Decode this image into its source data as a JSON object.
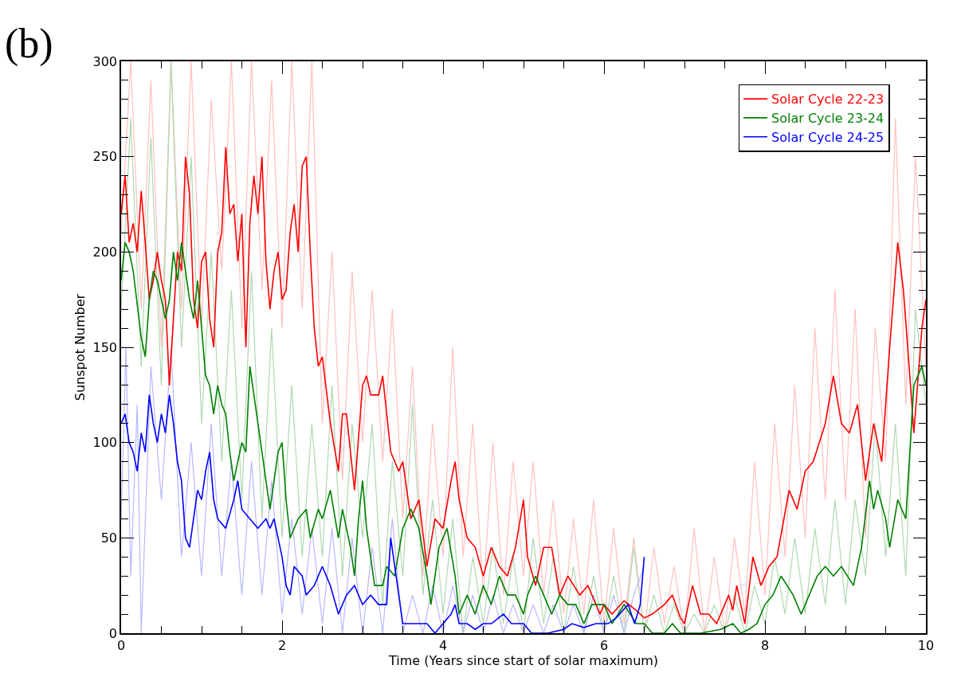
{
  "chart_data": {
    "type": "line",
    "title": "(b)",
    "xlabel": "Time (Years since start of solar maximum)",
    "ylabel": "Sunspot Number",
    "xlim": [
      0,
      10
    ],
    "ylim": [
      0,
      300
    ],
    "xticks": [
      0,
      {
        "value": 0.5,
        "label": null
      },
      {
        "value": 1,
        "label": null
      },
      {
        "value": 1.5,
        "label": null
      },
      2,
      {
        "value": 2.5,
        "label": null
      },
      {
        "value": 3,
        "label": null
      },
      {
        "value": 3.5,
        "label": null
      },
      4,
      {
        "value": 4.5,
        "label": null
      },
      {
        "value": 5,
        "label": null
      },
      {
        "value": 5.5,
        "label": null
      },
      6,
      {
        "value": 6.5,
        "label": null
      },
      {
        "value": 7,
        "label": null
      },
      {
        "value": 7.5,
        "label": null
      },
      8,
      {
        "value": 8.5,
        "label": null
      },
      {
        "value": 9,
        "label": null
      },
      {
        "value": 9.5,
        "label": null
      },
      10
    ],
    "yticks": [
      0,
      {
        "value": 10,
        "label": null
      },
      {
        "value": 20,
        "label": null
      },
      {
        "value": 30,
        "label": null
      },
      {
        "value": 40,
        "label": null
      },
      50,
      {
        "value": 60,
        "label": null
      },
      {
        "value": 70,
        "label": null
      },
      {
        "value": 80,
        "label": null
      },
      {
        "value": 90,
        "label": null
      },
      100,
      {
        "value": 110,
        "label": null
      },
      {
        "value": 120,
        "label": null
      },
      {
        "value": 130,
        "label": null
      },
      {
        "value": 140,
        "label": null
      },
      150,
      {
        "value": 160,
        "label": null
      },
      {
        "value": 170,
        "label": null
      },
      {
        "value": 180,
        "label": null
      },
      {
        "value": 190,
        "label": null
      },
      200,
      {
        "value": 210,
        "label": null
      },
      {
        "value": 220,
        "label": null
      },
      {
        "value": 230,
        "label": null
      },
      {
        "value": 240,
        "label": null
      },
      250,
      {
        "value": 260,
        "label": null
      },
      {
        "value": 270,
        "label": null
      },
      {
        "value": 280,
        "label": null
      },
      {
        "value": 290,
        "label": null
      },
      300
    ],
    "legend": "top right",
    "marker": "none",
    "line_style": "solid",
    "series": [
      {
        "color": "#ffc0c0",
        "x": [
          0,
          0.12,
          0.25,
          0.37,
          0.5,
          0.62,
          0.75,
          0.87,
          1.0,
          1.12,
          1.25,
          1.37,
          1.5,
          1.62,
          1.75,
          1.87,
          2.0,
          2.12,
          2.25,
          2.37,
          2.5,
          2.62,
          2.75,
          2.87,
          3.0,
          3.12,
          3.25,
          3.37,
          3.5,
          3.62,
          3.75,
          3.87,
          4.0,
          4.12,
          4.25,
          4.37,
          4.5,
          4.62,
          4.75,
          4.87,
          5.0,
          5.12,
          5.25,
          5.37,
          5.5,
          5.62,
          5.75,
          5.87,
          6.0,
          6.12,
          6.25,
          6.37,
          6.5,
          6.62,
          6.75,
          6.87,
          7.0,
          7.12,
          7.25,
          7.37,
          7.5,
          7.62,
          7.75,
          7.87,
          8.0,
          8.12,
          8.25,
          8.37,
          8.5,
          8.62,
          8.75,
          8.87,
          9.0,
          9.12,
          9.25,
          9.37,
          9.5,
          9.62,
          9.75,
          9.87,
          10.0
        ],
        "values": [
          210,
          300,
          170,
          290,
          150,
          300,
          170,
          300,
          160,
          280,
          190,
          300,
          160,
          300,
          180,
          290,
          160,
          300,
          170,
          300,
          110,
          200,
          80,
          190,
          100,
          180,
          90,
          170,
          60,
          140,
          30,
          110,
          40,
          150,
          40,
          110,
          20,
          100,
          20,
          90,
          30,
          90,
          20,
          70,
          10,
          60,
          10,
          70,
          5,
          55,
          5,
          50,
          0,
          45,
          5,
          35,
          0,
          55,
          0,
          40,
          0,
          50,
          10,
          90,
          20,
          110,
          40,
          130,
          50,
          160,
          70,
          180,
          70,
          170,
          50,
          160,
          90,
          270,
          120,
          250,
          140
        ]
      },
      {
        "color": "#b0d8b0",
        "x": [
          0,
          0.12,
          0.25,
          0.37,
          0.5,
          0.62,
          0.75,
          0.87,
          1.0,
          1.12,
          1.25,
          1.37,
          1.5,
          1.62,
          1.75,
          1.87,
          2.0,
          2.12,
          2.25,
          2.37,
          2.5,
          2.62,
          2.75,
          2.87,
          3.0,
          3.12,
          3.25,
          3.37,
          3.5,
          3.62,
          3.75,
          3.87,
          4.0,
          4.12,
          4.25,
          4.37,
          4.5,
          4.62,
          4.75,
          4.87,
          5.0,
          5.12,
          5.25,
          5.37,
          5.5,
          5.62,
          5.75,
          5.87,
          6.0,
          6.12,
          6.25,
          6.37,
          6.5,
          6.62,
          6.75,
          6.87,
          7.0,
          7.12,
          7.25,
          7.37,
          7.5,
          7.62,
          7.75,
          7.87,
          8.0,
          8.12,
          8.25,
          8.37,
          8.5,
          8.62,
          8.75,
          8.87,
          9.0,
          9.12,
          9.25,
          9.37,
          9.5,
          9.62,
          9.75,
          9.87,
          10.0
        ],
        "values": [
          170,
          270,
          140,
          260,
          130,
          300,
          150,
          250,
          110,
          200,
          90,
          180,
          70,
          190,
          60,
          160,
          50,
          130,
          40,
          110,
          40,
          130,
          30,
          110,
          50,
          110,
          15,
          90,
          30,
          120,
          20,
          70,
          10,
          60,
          0,
          40,
          5,
          45,
          5,
          40,
          0,
          50,
          5,
          40,
          0,
          35,
          0,
          30,
          0,
          30,
          0,
          45,
          0,
          20,
          0,
          15,
          0,
          10,
          0,
          15,
          0,
          20,
          0,
          25,
          5,
          40,
          10,
          50,
          10,
          55,
          15,
          70,
          15,
          70,
          30,
          110,
          40,
          110,
          30,
          170,
          120
        ]
      },
      {
        "color": "#b8b8ff",
        "x": [
          0,
          0.06,
          0.12,
          0.2,
          0.25,
          0.37,
          0.5,
          0.62,
          0.75,
          0.87,
          1.0,
          1.12,
          1.25,
          1.37,
          1.5,
          1.62,
          1.75,
          1.87,
          2.0,
          2.12,
          2.25,
          2.37,
          2.5,
          2.62,
          2.75,
          2.87,
          3.0,
          3.12,
          3.25,
          3.37,
          3.5,
          3.62,
          3.75,
          3.87,
          4.0,
          4.12,
          4.25,
          4.37,
          4.5,
          4.62,
          4.75,
          4.87,
          5.0,
          5.12,
          5.25,
          5.37,
          5.5,
          5.62,
          5.75,
          5.87,
          6.0,
          6.12,
          6.25,
          6.37,
          6.5
        ],
        "values": [
          60,
          150,
          30,
          120,
          0,
          140,
          70,
          150,
          40,
          100,
          30,
          110,
          30,
          90,
          20,
          90,
          20,
          80,
          10,
          60,
          10,
          55,
          5,
          55,
          0,
          50,
          0,
          45,
          0,
          60,
          0,
          20,
          0,
          25,
          0,
          25,
          0,
          20,
          0,
          20,
          0,
          15,
          0,
          15,
          0,
          15,
          0,
          15,
          0,
          20,
          0,
          20,
          0,
          20,
          35
        ]
      },
      {
        "name": "Solar Cycle 22-23",
        "color": "#ff0000",
        "x": [
          0,
          0.05,
          0.1,
          0.15,
          0.2,
          0.25,
          0.3,
          0.35,
          0.4,
          0.45,
          0.5,
          0.55,
          0.6,
          0.65,
          0.7,
          0.75,
          0.8,
          0.85,
          0.9,
          0.95,
          1.0,
          1.05,
          1.1,
          1.15,
          1.2,
          1.25,
          1.3,
          1.35,
          1.4,
          1.45,
          1.5,
          1.55,
          1.6,
          1.65,
          1.7,
          1.75,
          1.8,
          1.85,
          1.9,
          1.95,
          2.0,
          2.05,
          2.1,
          2.15,
          2.2,
          2.25,
          2.3,
          2.35,
          2.4,
          2.45,
          2.5,
          2.6,
          2.7,
          2.75,
          2.8,
          2.9,
          3.0,
          3.05,
          3.1,
          3.2,
          3.25,
          3.35,
          3.45,
          3.5,
          3.6,
          3.7,
          3.8,
          3.9,
          4.0,
          4.1,
          4.15,
          4.2,
          4.3,
          4.4,
          4.5,
          4.6,
          4.7,
          4.8,
          4.9,
          5.0,
          5.05,
          5.15,
          5.25,
          5.35,
          5.45,
          5.55,
          5.7,
          5.8,
          5.95,
          6.0,
          6.1,
          6.25,
          6.4,
          6.5,
          6.6,
          6.75,
          6.85,
          6.95,
          7.0,
          7.1,
          7.2,
          7.3,
          7.4,
          7.55,
          7.6,
          7.65,
          7.75,
          7.85,
          7.95,
          8.05,
          8.15,
          8.3,
          8.4,
          8.5,
          8.6,
          8.75,
          8.85,
          8.95,
          9.05,
          9.15,
          9.25,
          9.35,
          9.45,
          9.55,
          9.65,
          9.72,
          9.8,
          9.85,
          9.95,
          10.0
        ],
        "values": [
          220,
          240,
          205,
          215,
          200,
          232,
          205,
          175,
          185,
          200,
          185,
          175,
          130,
          165,
          200,
          190,
          250,
          230,
          175,
          160,
          195,
          200,
          165,
          150,
          200,
          210,
          255,
          220,
          225,
          195,
          220,
          150,
          215,
          240,
          220,
          250,
          195,
          170,
          190,
          200,
          175,
          180,
          210,
          225,
          200,
          245,
          250,
          200,
          160,
          140,
          145,
          110,
          85,
          115,
          115,
          75,
          130,
          135,
          125,
          125,
          135,
          95,
          85,
          90,
          60,
          70,
          35,
          60,
          55,
          80,
          90,
          70,
          50,
          45,
          30,
          45,
          35,
          30,
          45,
          70,
          40,
          25,
          45,
          45,
          20,
          30,
          20,
          25,
          10,
          15,
          10,
          17,
          12,
          8,
          10,
          15,
          20,
          8,
          5,
          25,
          10,
          10,
          5,
          20,
          12,
          25,
          5,
          40,
          25,
          35,
          40,
          75,
          65,
          85,
          90,
          110,
          135,
          110,
          105,
          120,
          80,
          110,
          90,
          150,
          205,
          180,
          135,
          105,
          160,
          175
        ]
      },
      {
        "name": "Solar Cycle 23-24",
        "color": "#008000",
        "x": [
          0,
          0.05,
          0.1,
          0.15,
          0.25,
          0.3,
          0.35,
          0.4,
          0.45,
          0.55,
          0.6,
          0.65,
          0.7,
          0.75,
          0.85,
          0.9,
          0.95,
          1.0,
          1.05,
          1.1,
          1.15,
          1.2,
          1.25,
          1.3,
          1.35,
          1.4,
          1.5,
          1.55,
          1.6,
          1.65,
          1.7,
          1.8,
          1.85,
          1.95,
          2.0,
          2.05,
          2.1,
          2.2,
          2.3,
          2.35,
          2.45,
          2.5,
          2.6,
          2.7,
          2.75,
          2.85,
          2.9,
          2.95,
          3.0,
          3.05,
          3.15,
          3.25,
          3.3,
          3.4,
          3.5,
          3.6,
          3.7,
          3.8,
          3.85,
          3.95,
          4.05,
          4.15,
          4.2,
          4.3,
          4.4,
          4.5,
          4.6,
          4.7,
          4.8,
          4.9,
          5.0,
          5.05,
          5.15,
          5.25,
          5.35,
          5.45,
          5.55,
          5.65,
          5.75,
          5.85,
          6.0,
          6.1,
          6.25,
          6.4,
          6.5,
          6.6,
          6.75,
          6.85,
          6.95,
          7.2,
          7.45,
          7.6,
          7.7,
          7.8,
          7.9,
          8.0,
          8.1,
          8.2,
          8.35,
          8.45,
          8.55,
          8.65,
          8.75,
          8.85,
          8.95,
          9.1,
          9.2,
          9.3,
          9.35,
          9.4,
          9.5,
          9.55,
          9.65,
          9.75,
          9.85,
          9.95,
          10.0
        ],
        "values": [
          185,
          205,
          200,
          190,
          155,
          145,
          175,
          190,
          185,
          165,
          175,
          200,
          185,
          205,
          175,
          165,
          185,
          160,
          135,
          130,
          115,
          130,
          120,
          115,
          95,
          80,
          100,
          95,
          140,
          125,
          110,
          80,
          65,
          95,
          100,
          70,
          50,
          60,
          65,
          50,
          65,
          60,
          75,
          50,
          65,
          45,
          30,
          60,
          80,
          55,
          25,
          25,
          35,
          30,
          55,
          65,
          55,
          30,
          15,
          45,
          55,
          30,
          10,
          20,
          10,
          25,
          15,
          30,
          20,
          20,
          10,
          20,
          30,
          20,
          10,
          20,
          15,
          15,
          5,
          15,
          15,
          5,
          15,
          5,
          5,
          0,
          0,
          5,
          0,
          0,
          2,
          5,
          0,
          2,
          5,
          15,
          20,
          30,
          20,
          10,
          20,
          30,
          35,
          30,
          35,
          25,
          45,
          80,
          65,
          75,
          60,
          45,
          70,
          60,
          130,
          140,
          130
        ]
      },
      {
        "name": "Solar Cycle 24-25",
        "color": "#0000ff",
        "x": [
          0,
          0.05,
          0.1,
          0.15,
          0.2,
          0.25,
          0.3,
          0.35,
          0.4,
          0.45,
          0.5,
          0.55,
          0.6,
          0.65,
          0.7,
          0.75,
          0.8,
          0.85,
          0.9,
          0.95,
          1.0,
          1.05,
          1.1,
          1.15,
          1.2,
          1.3,
          1.4,
          1.45,
          1.5,
          1.6,
          1.7,
          1.8,
          1.85,
          1.9,
          2.0,
          2.05,
          2.1,
          2.15,
          2.25,
          2.3,
          2.4,
          2.5,
          2.6,
          2.7,
          2.8,
          2.9,
          3.0,
          3.1,
          3.2,
          3.3,
          3.35,
          3.45,
          3.5,
          3.6,
          3.8,
          3.9,
          4.0,
          4.1,
          4.15,
          4.2,
          4.3,
          4.4,
          4.5,
          4.6,
          4.75,
          4.85,
          5.0,
          5.1,
          5.3,
          5.5,
          5.6,
          5.75,
          5.9,
          6.05,
          6.15,
          6.3,
          6.38,
          6.45,
          6.5
        ],
        "values": [
          110,
          115,
          100,
          95,
          85,
          105,
          95,
          125,
          110,
          100,
          115,
          105,
          125,
          110,
          90,
          80,
          50,
          45,
          60,
          75,
          70,
          85,
          95,
          70,
          60,
          55,
          70,
          80,
          65,
          60,
          55,
          60,
          55,
          60,
          40,
          25,
          20,
          35,
          30,
          20,
          25,
          35,
          25,
          10,
          20,
          25,
          15,
          20,
          15,
          15,
          50,
          20,
          5,
          5,
          5,
          0,
          5,
          10,
          15,
          5,
          5,
          2,
          5,
          5,
          10,
          5,
          5,
          0,
          0,
          2,
          5,
          3,
          5,
          5,
          8,
          15,
          5,
          15,
          40
        ]
      }
    ]
  }
}
